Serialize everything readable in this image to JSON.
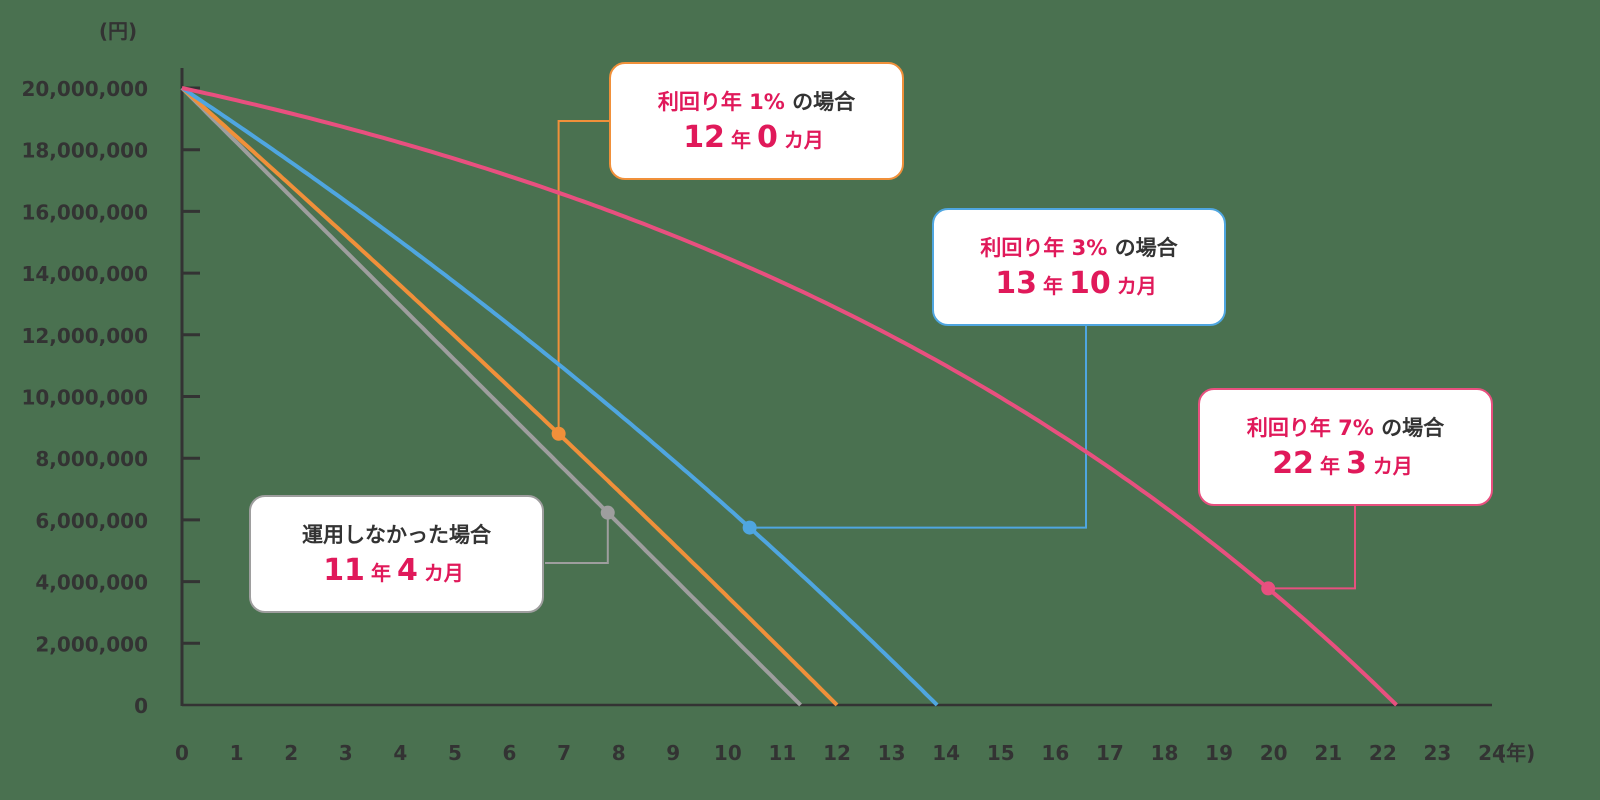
{
  "chart_data": {
    "type": "line",
    "title": "",
    "xlabel": "(年)",
    "ylabel": "(円)",
    "xlim": [
      0,
      24
    ],
    "ylim": [
      0,
      20000000
    ],
    "x_ticks": [
      "0",
      "1",
      "2",
      "3",
      "4",
      "5",
      "6",
      "7",
      "8",
      "9",
      "10",
      "11",
      "12",
      "13",
      "14",
      "15",
      "16",
      "17",
      "18",
      "19",
      "20",
      "21",
      "22",
      "23",
      "24"
    ],
    "y_ticks": [
      "0",
      "2,000,000",
      "4,000,000",
      "6,000,000",
      "8,000,000",
      "10,000,000",
      "12,000,000",
      "14,000,000",
      "16,000,000",
      "18,000,000",
      "20,000,000"
    ],
    "grid": false,
    "initial_balance": 20000000,
    "series": [
      {
        "name": "運用しなかった場合",
        "rate": 0.0,
        "color": "#9e9e9e",
        "depletion_years": 11.333,
        "marker_x": 7.8
      },
      {
        "name": "利回り年 1% の場合",
        "rate": 0.01,
        "color": "#f0903a",
        "depletion_years": 12.0,
        "marker_x": 6.9
      },
      {
        "name": "利回り年 3% の場合",
        "rate": 0.03,
        "color": "#4fa6e0",
        "depletion_years": 13.833,
        "marker_x": 10.4
      },
      {
        "name": "利回り年 7% の場合",
        "rate": 0.07,
        "color": "#e8507f",
        "depletion_years": 22.25,
        "marker_x": 19.9
      }
    ]
  },
  "callouts": [
    {
      "id": "r1",
      "line1_pink": "利回り年 1%",
      "line1_dark": " の場合",
      "years": "12",
      "year_unit": "年",
      "months": "0",
      "month_unit": "カ月",
      "border": "#f0903a"
    },
    {
      "id": "r3",
      "line1_pink": "利回り年 3%",
      "line1_dark": " の場合",
      "years": "13",
      "year_unit": "年",
      "months": "10",
      "month_unit": "カ月",
      "border": "#4fa6e0"
    },
    {
      "id": "r7",
      "line1_pink": "利回り年 7%",
      "line1_dark": " の場合",
      "years": "22",
      "year_unit": "年",
      "months": "3",
      "month_unit": "カ月",
      "border": "#e8507f"
    },
    {
      "id": "r0",
      "line1_pink": "",
      "line1_dark": "運用しなかった場合",
      "years": "11",
      "year_unit": "年",
      "months": "4",
      "month_unit": "カ月",
      "border": "#9e9e9e"
    }
  ]
}
